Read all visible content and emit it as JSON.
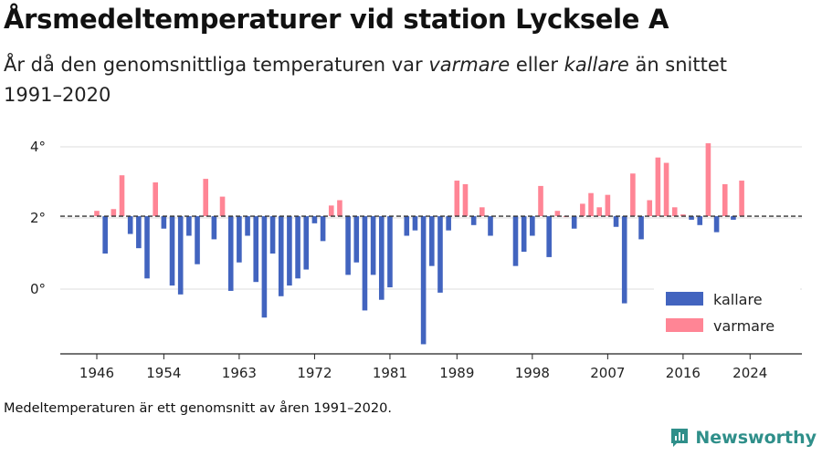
{
  "title": "Årsmedeltemperaturer vid station Lycksele A",
  "subtitle": {
    "part1": "År då den genomsnittliga temperaturen var ",
    "warmer": "varmare",
    "part2": " eller ",
    "colder": "kallare",
    "part3": " än snittet 1991–2020"
  },
  "footnote": "Medeltemperaturen är ett genomsnitt av åren 1991–2020.",
  "brand": "Newsworthy",
  "colors": {
    "kallare": "#4264bf",
    "varmare": "#ff8595",
    "axis": "#222222",
    "grid": "#dddddd",
    "baseline": "#333333",
    "brand": "#2f8f8a"
  },
  "icons": {
    "brand": "bar-chart-logo-icon"
  },
  "chart_data": {
    "type": "bar",
    "baseline": 2.05,
    "ylim": [
      -1.6,
      4.3
    ],
    "yticks": [
      0,
      2,
      4
    ],
    "ytick_labels": [
      "0°",
      "2°",
      "4°"
    ],
    "xticks": [
      1946,
      1954,
      1963,
      1972,
      1981,
      1989,
      1998,
      2007,
      2016,
      2024
    ],
    "grid": true,
    "legend_position": "bottom-right",
    "series": [
      {
        "name": "kallare",
        "color": "#4264bf"
      },
      {
        "name": "varmare",
        "color": "#ff8595"
      }
    ],
    "years": [
      1946,
      1947,
      1948,
      1949,
      1950,
      1951,
      1952,
      1953,
      1954,
      1955,
      1956,
      1957,
      1958,
      1959,
      1960,
      1961,
      1962,
      1963,
      1964,
      1965,
      1966,
      1967,
      1968,
      1969,
      1970,
      1971,
      1972,
      1973,
      1974,
      1975,
      1976,
      1977,
      1978,
      1979,
      1980,
      1981,
      1982,
      1983,
      1984,
      1985,
      1986,
      1987,
      1988,
      1989,
      1990,
      1991,
      1992,
      1993,
      1994,
      1995,
      1996,
      1997,
      1998,
      1999,
      2000,
      2001,
      2002,
      2003,
      2004,
      2005,
      2006,
      2007,
      2008,
      2009,
      2010,
      2011,
      2012,
      2013,
      2014,
      2015,
      2016,
      2017,
      2018,
      2019,
      2020,
      2021,
      2022,
      2023,
      2024
    ],
    "values": [
      2.2,
      1.0,
      2.25,
      3.2,
      1.55,
      1.15,
      0.3,
      3.0,
      1.7,
      0.1,
      -0.15,
      1.5,
      0.7,
      3.1,
      1.4,
      2.6,
      -0.05,
      0.75,
      1.5,
      0.2,
      -0.8,
      1.0,
      -0.2,
      0.1,
      0.3,
      0.55,
      1.85,
      1.35,
      2.35,
      2.5,
      0.4,
      0.75,
      -0.6,
      0.4,
      -0.3,
      0.05,
      null,
      1.5,
      1.65,
      -1.55,
      0.65,
      -0.1,
      1.65,
      3.05,
      2.95,
      1.8,
      2.3,
      1.5,
      null,
      null,
      0.65,
      1.05,
      1.5,
      2.9,
      0.9,
      2.2,
      2.05,
      1.7,
      2.4,
      2.7,
      2.3,
      2.65,
      1.75,
      -0.4,
      3.25,
      1.4,
      2.5,
      3.7,
      3.55,
      2.3,
      2.1,
      1.95,
      1.8,
      4.1,
      1.6,
      2.95,
      1.95,
      3.05,
      null
    ]
  }
}
